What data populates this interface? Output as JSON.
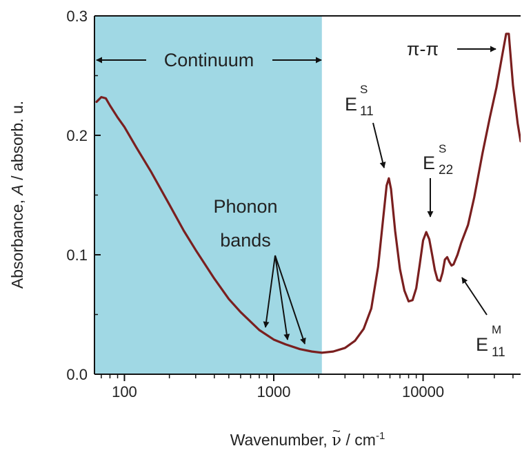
{
  "chart_data": {
    "type": "line",
    "title": "",
    "xlabel_prefix": "Wavenumber, ",
    "xlabel_symbol": "ν",
    "xlabel_tilde": "~",
    "xlabel_unit": " / cm",
    "xlabel_exp": "-1",
    "ylabel_prefix": "Absorbance, ",
    "ylabel_var": "A",
    "ylabel_suffix": " / absorb. u.",
    "xscale": "log",
    "xlim": [
      63,
      45000
    ],
    "ylim": [
      0,
      0.3
    ],
    "xticks": [
      {
        "value": 100,
        "label": "100"
      },
      {
        "value": 1000,
        "label": "1000"
      },
      {
        "value": 10000,
        "label": "10000"
      }
    ],
    "yticks": [
      {
        "value": 0.0,
        "label": "0.0"
      },
      {
        "value": 0.1,
        "label": "0.1"
      },
      {
        "value": 0.2,
        "label": "0.2"
      },
      {
        "value": 0.3,
        "label": "0.3"
      }
    ],
    "shaded_region": {
      "x_range": [
        63,
        2100
      ],
      "color": "#a0d8e4",
      "label": "Continuum"
    },
    "series_color": "#7a1f1f",
    "series": [
      {
        "x": [
          65,
          70,
          75,
          80,
          90,
          100,
          120,
          150,
          200,
          250,
          300,
          400,
          500,
          600,
          800,
          1000,
          1200,
          1500,
          1800,
          2100,
          2500,
          3000,
          3500,
          4000,
          4500,
          5000,
          5400,
          5700,
          5900,
          6100,
          6500,
          7000,
          7500,
          8000,
          8500,
          9000,
          9500,
          10000,
          10500,
          11000,
          11500,
          12000,
          12500,
          13000,
          13500,
          14000,
          14500,
          15000,
          15500,
          16000,
          17000,
          18000,
          20000,
          22000,
          25000,
          28000,
          31000,
          34000,
          36000,
          37500,
          40000,
          43000,
          45000
        ],
        "y": [
          0.228,
          0.232,
          0.231,
          0.225,
          0.215,
          0.207,
          0.19,
          0.17,
          0.142,
          0.12,
          0.104,
          0.08,
          0.063,
          0.052,
          0.037,
          0.029,
          0.025,
          0.021,
          0.019,
          0.018,
          0.019,
          0.022,
          0.028,
          0.038,
          0.055,
          0.09,
          0.13,
          0.158,
          0.164,
          0.155,
          0.12,
          0.088,
          0.07,
          0.061,
          0.062,
          0.072,
          0.092,
          0.112,
          0.119,
          0.113,
          0.1,
          0.087,
          0.079,
          0.078,
          0.085,
          0.096,
          0.098,
          0.094,
          0.091,
          0.092,
          0.1,
          0.11,
          0.125,
          0.148,
          0.185,
          0.215,
          0.24,
          0.268,
          0.285,
          0.285,
          0.242,
          0.21,
          0.195
        ]
      }
    ],
    "annotations": {
      "continuum": "Continuum",
      "pipi": "π-π",
      "phonon_line1": "Phonon",
      "phonon_line2": "bands",
      "e11s_main": "E",
      "e11s_sub": "11",
      "e11s_sup": "S",
      "e22s_main": "E",
      "e22s_sub": "22",
      "e22s_sup": "S",
      "e11m_main": "E",
      "e11m_sub": "11",
      "e11m_sup": "M"
    }
  }
}
